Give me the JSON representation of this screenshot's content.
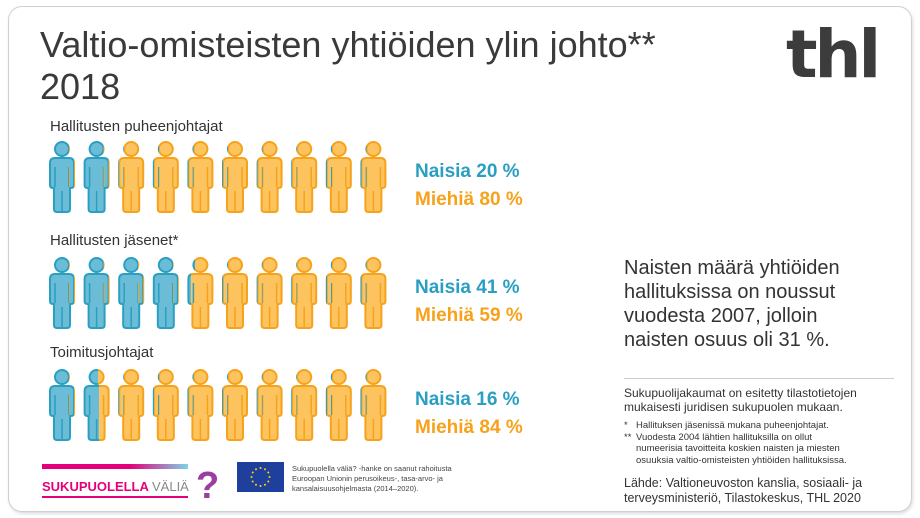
{
  "title": {
    "line1": "Valtio-omisteisten yhtiöiden ylin johto**",
    "line2": "2018"
  },
  "logo": "thl",
  "colors": {
    "women": "#2a9fc2",
    "women_fill": "#6bbcd6",
    "men": "#f7a21b",
    "men_fill": "#fcc35e"
  },
  "groups": [
    {
      "label": "Hallitusten puheenjohtajat",
      "women_label": "Naisia 20 %",
      "men_label": "Miehiä 80 %",
      "women_pct": 20,
      "men_pct": 80
    },
    {
      "label": "Hallitusten jäsenet*",
      "women_label": "Naisia 41 %",
      "men_label": "Miehiä 59 %",
      "women_pct": 41,
      "men_pct": 59
    },
    {
      "label": "Toimitusjohtajat",
      "women_label": "Naisia 16 %",
      "men_label": "Miehiä 84 %",
      "women_pct": 16,
      "men_pct": 84
    }
  ],
  "note": {
    "l1": "Naisten määrä yhtiöiden",
    "l2": "hallituksissa on noussut",
    "l3": "vuodesta 2007, jolloin",
    "l4": "naisten osuus oli 31 %."
  },
  "side": {
    "l1": "Sukupuolijakaumat on esitetty tilastotietojen",
    "l2": "mukaisesti juridisen sukupuolen mukaan."
  },
  "footnotes": {
    "f1_mark": "*",
    "f1": "Hallituksen jäsenissä mukana puheenjohtajat.",
    "f2_mark": "**",
    "f2_l1": "Vuodesta 2004 lähtien hallituksilla on ollut",
    "f2_l2": "numeerisia tavoitteita  koskien naisten ja miesten",
    "f2_l3": "osuuksia valtio-omisteisten yhtiöiden hallituksissa."
  },
  "source": {
    "l1": "Lähde:  Valtioneuvoston kanslia, sosiaali- ja",
    "l2": "terveysministeriö, Tilastokeskus, THL 2020"
  },
  "project_logo": {
    "bold": "SUKUPUOLELLA",
    "light": "VÄLIÄ",
    "mark": "?"
  },
  "eu_text": {
    "l1": "Sukupuolella väliä? -hanke on saanut rahoitusta",
    "l2": "Euroopan Unionin perusoikeus-, tasa-arvo- ja",
    "l3": "kansalaisuusohjelmasta (2014–2020)."
  }
}
